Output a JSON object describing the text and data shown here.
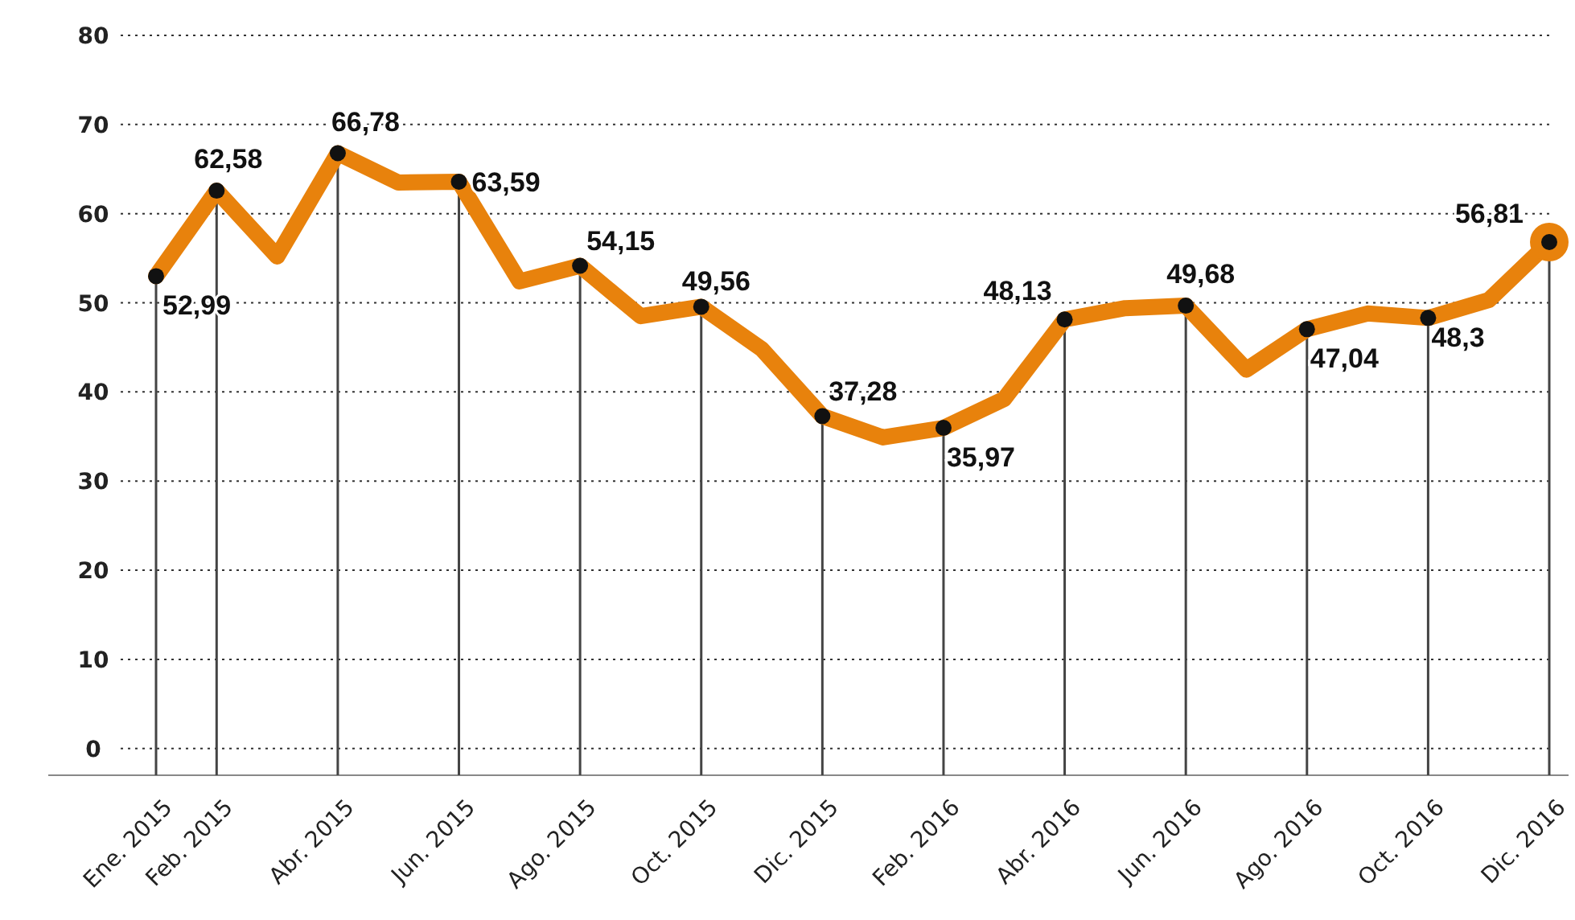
{
  "chart_data": {
    "type": "line",
    "categories": [
      "Ene. 2015",
      "Feb. 2015",
      null,
      "Abr. 2015",
      null,
      "Jun. 2015",
      null,
      "Ago. 2015",
      null,
      "Oct. 2015",
      null,
      "Dic. 2015",
      null,
      "Feb. 2016",
      null,
      "Abr. 2016",
      null,
      "Jun. 2016",
      null,
      "Ago. 2016",
      null,
      "Oct. 2016",
      null,
      "Dic. 2016"
    ],
    "series": [
      {
        "color": "#e8820c",
        "values": [
          52.99,
          62.58,
          55.2,
          66.78,
          63.5,
          63.59,
          52.4,
          54.15,
          48.5,
          49.56,
          44.8,
          37.28,
          34.9,
          35.97,
          39.2,
          48.13,
          49.4,
          49.68,
          42.5,
          47.04,
          48.8,
          48.3,
          50.3,
          56.81
        ],
        "value_labels": [
          "52,99",
          "62,58",
          null,
          "66,78",
          null,
          "63,59",
          null,
          "54,15",
          null,
          "49,56",
          null,
          "37,28",
          null,
          "35,97",
          null,
          "48,13",
          null,
          "49,68",
          null,
          "47,04",
          null,
          "48,3",
          null,
          "56,81"
        ]
      }
    ],
    "ylim": [
      -3,
      80
    ],
    "yticks": [
      0,
      10,
      20,
      30,
      40,
      50,
      60,
      70,
      80
    ],
    "grid": true,
    "marker": "circle",
    "line_style": "solid"
  }
}
